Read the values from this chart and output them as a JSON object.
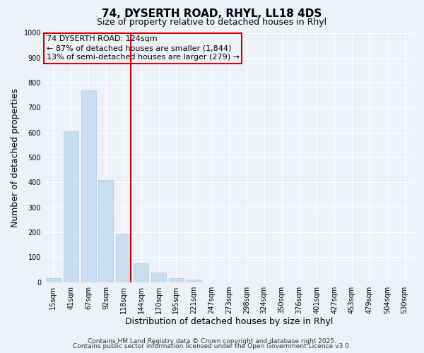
{
  "title": "74, DYSERTH ROAD, RHYL, LL18 4DS",
  "subtitle": "Size of property relative to detached houses in Rhyl",
  "xlabel": "Distribution of detached houses by size in Rhyl",
  "ylabel": "Number of detached properties",
  "bar_labels": [
    "15sqm",
    "41sqm",
    "67sqm",
    "92sqm",
    "118sqm",
    "144sqm",
    "170sqm",
    "195sqm",
    "221sqm",
    "247sqm",
    "273sqm",
    "298sqm",
    "324sqm",
    "350sqm",
    "376sqm",
    "401sqm",
    "427sqm",
    "453sqm",
    "479sqm",
    "504sqm",
    "530sqm"
  ],
  "bar_values": [
    15,
    605,
    770,
    410,
    195,
    75,
    40,
    15,
    10,
    0,
    0,
    0,
    0,
    0,
    0,
    0,
    0,
    0,
    0,
    0,
    0
  ],
  "bar_color": "#c9ddf0",
  "bar_edge_color": "#a8c8e8",
  "vline_x_index": 4,
  "vline_color": "#cc0000",
  "annotation_title": "74 DYSERTH ROAD: 124sqm",
  "annotation_line1": "← 87% of detached houses are smaller (1,844)",
  "annotation_line2": "13% of semi-detached houses are larger (279) →",
  "annotation_box_edgecolor": "#cc0000",
  "ylim": [
    0,
    1000
  ],
  "yticks": [
    0,
    100,
    200,
    300,
    400,
    500,
    600,
    700,
    800,
    900,
    1000
  ],
  "footnote1": "Contains HM Land Registry data © Crown copyright and database right 2025.",
  "footnote2": "Contains public sector information licensed under the Open Government Licence v3.0.",
  "bg_color": "#eef2f8",
  "grid_color": "#ffffff",
  "title_fontsize": 11,
  "subtitle_fontsize": 9,
  "axis_label_fontsize": 9,
  "tick_fontsize": 7,
  "annotation_fontsize": 8,
  "footnote_fontsize": 6.5
}
